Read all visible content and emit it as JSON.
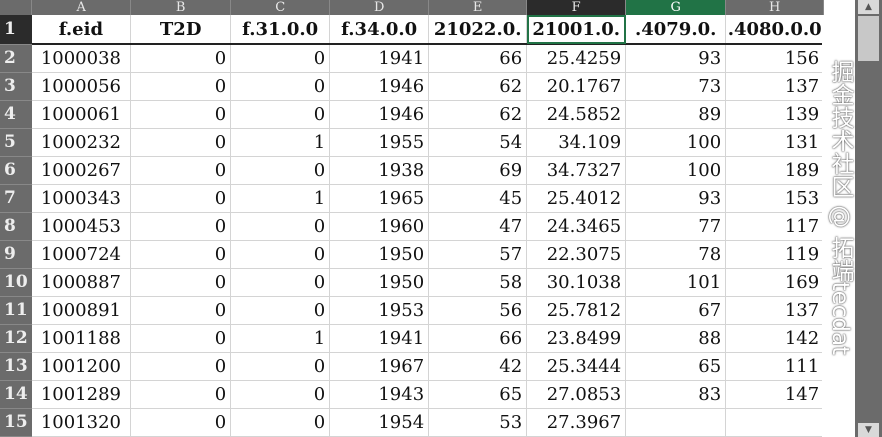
{
  "columns": [
    "A",
    "B",
    "C",
    "D",
    "E",
    "F",
    "G",
    "H"
  ],
  "headers": [
    "f.eid",
    "T2D",
    "f.31.0.0",
    "f.34.0.0",
    "21022.0.",
    "21001.0.",
    ".4079.0.",
    ".4080.0.0"
  ],
  "rows": [
    [
      "1000038",
      "0",
      "0",
      "1941",
      "66",
      "25.4259",
      "93",
      "156"
    ],
    [
      "1000056",
      "0",
      "0",
      "1946",
      "62",
      "20.1767",
      "73",
      "137"
    ],
    [
      "1000061",
      "0",
      "0",
      "1946",
      "62",
      "24.5852",
      "89",
      "139"
    ],
    [
      "1000232",
      "0",
      "1",
      "1955",
      "54",
      "34.109",
      "100",
      "131"
    ],
    [
      "1000267",
      "0",
      "0",
      "1938",
      "69",
      "34.7327",
      "100",
      "189"
    ],
    [
      "1000343",
      "0",
      "1",
      "1965",
      "45",
      "25.4012",
      "93",
      "153"
    ],
    [
      "1000453",
      "0",
      "0",
      "1960",
      "47",
      "24.3465",
      "77",
      "117"
    ],
    [
      "1000724",
      "0",
      "0",
      "1950",
      "57",
      "22.3075",
      "78",
      "119"
    ],
    [
      "1000887",
      "0",
      "0",
      "1950",
      "58",
      "30.1038",
      "101",
      "169"
    ],
    [
      "1000891",
      "0",
      "0",
      "1953",
      "56",
      "25.7812",
      "67",
      "137"
    ],
    [
      "1001188",
      "0",
      "1",
      "1941",
      "66",
      "23.8499",
      "88",
      "142"
    ],
    [
      "1001200",
      "0",
      "0",
      "1967",
      "42",
      "25.3444",
      "65",
      "111"
    ],
    [
      "1001289",
      "0",
      "0",
      "1943",
      "65",
      "27.0853",
      "83",
      "147"
    ],
    [
      "1001320",
      "0",
      "0",
      "1954",
      "53",
      "27.3967",
      "",
      ""
    ]
  ],
  "selected_cell": "F1",
  "accent_color": "#217346",
  "watermark": "掘金技术社区 @ 拓端tecdat"
}
